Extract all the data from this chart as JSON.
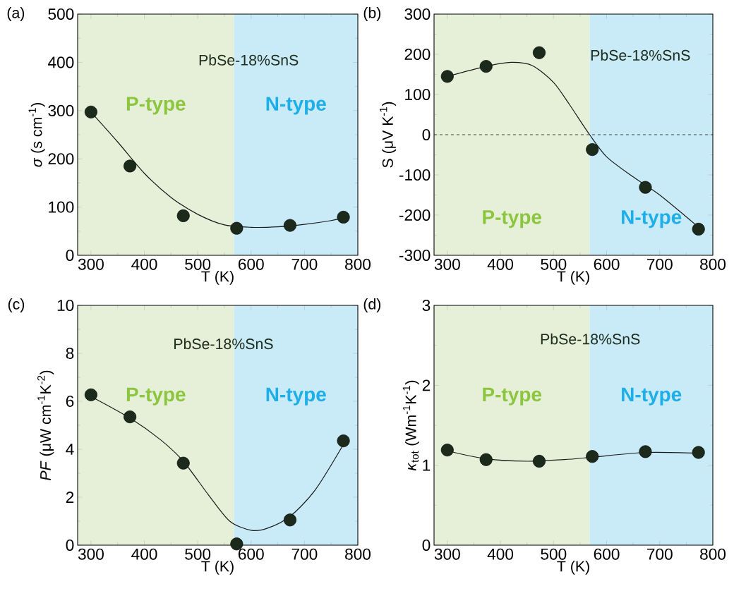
{
  "chart_data": [
    {
      "type": "scatter",
      "xlabel": "T (K)",
      "ylabel": "*σ* (s cm$^{-1}$)",
      "xlim": [
        275,
        800
      ],
      "ylim": [
        0,
        500
      ],
      "xticks": [
        300,
        400,
        500,
        600,
        700,
        800
      ],
      "yticks": [
        0,
        100,
        200,
        300,
        400,
        500
      ],
      "grid": false,
      "marker": "circle",
      "series": [
        {
          "color": "#1c2a1c",
          "x": [
            300,
            373,
            473,
            573,
            673,
            773
          ],
          "values": [
            297,
            185,
            82,
            56,
            62,
            79
          ]
        },
        {
          "type": "line",
          "color": "#1a1a1a",
          "marker": "none",
          "line_style": "solid",
          "x": [
            300,
            350,
            400,
            450,
            500,
            550,
            600,
            650,
            700,
            750,
            773
          ],
          "values": [
            297,
            235,
            170,
            120,
            85,
            63,
            58,
            59,
            64,
            72,
            78
          ]
        }
      ],
      "bands": [
        {
          "axis": "x",
          "from": 275,
          "to": 568,
          "label": "P-type",
          "color": "#e6f0d8"
        },
        {
          "axis": "x",
          "from": 568,
          "to": 800,
          "label": "N-type",
          "color": "#c9ebf8"
        }
      ],
      "annotations": [
        "(a)",
        "PbSe-18%SnS"
      ]
    },
    {
      "type": "scatter",
      "xlabel": "T (K)",
      "ylabel": "S (μV K$^{-1}$)",
      "xlim": [
        275,
        800
      ],
      "ylim": [
        -300,
        300
      ],
      "xticks": [
        300,
        400,
        500,
        600,
        700,
        800
      ],
      "yticks": [
        -300,
        -200,
        -100,
        0,
        100,
        200,
        300
      ],
      "grid": false,
      "marker": "circle",
      "series": [
        {
          "color": "#1c2a1c",
          "x": [
            300,
            373,
            473,
            573,
            673,
            773
          ],
          "values": [
            145,
            170,
            204,
            -37,
            -131,
            -235
          ]
        },
        {
          "type": "line",
          "color": "#1a1a1a",
          "marker": "none",
          "line_style": "solid",
          "x": [
            300,
            373,
            420,
            460,
            500,
            530,
            568,
            600,
            650,
            700,
            773
          ],
          "values": [
            145,
            170,
            180,
            172,
            130,
            75,
            0,
            -55,
            -105,
            -150,
            -230
          ]
        }
      ],
      "bands": [
        {
          "axis": "x",
          "from": 275,
          "to": 568,
          "label": "P-type",
          "color": "#e6f0d8"
        },
        {
          "axis": "x",
          "from": 568,
          "to": 800,
          "label": "N-type",
          "color": "#c9ebf8"
        }
      ],
      "ref_lines": [
        {
          "axis": "y",
          "value": 0,
          "line_style": "dashed",
          "color": "#1a1a1a"
        }
      ],
      "annotations": [
        "(b)",
        "PbSe-18%SnS"
      ]
    },
    {
      "type": "scatter",
      "xlabel": "T (K)",
      "ylabel": "*PF* (μW cm$^{-1}$K$^{-2}$)",
      "xlim": [
        275,
        800
      ],
      "ylim": [
        0,
        10
      ],
      "xticks": [
        300,
        400,
        500,
        600,
        700,
        800
      ],
      "yticks": [
        0,
        2,
        4,
        6,
        8,
        10
      ],
      "grid": false,
      "marker": "circle",
      "series": [
        {
          "color": "#1c2a1c",
          "x": [
            300,
            373,
            473,
            573,
            673,
            773
          ],
          "values": [
            6.27,
            5.35,
            3.42,
            0.05,
            1.05,
            4.35
          ]
        },
        {
          "type": "line",
          "color": "#1a1a1a",
          "marker": "none",
          "line_style": "solid",
          "x": [
            300,
            373,
            430,
            473,
            520,
            560,
            600,
            630,
            673,
            720,
            773
          ],
          "values": [
            6.2,
            5.3,
            4.4,
            3.5,
            2.1,
            1.0,
            0.62,
            0.7,
            1.2,
            2.3,
            4.2
          ]
        }
      ],
      "bands": [
        {
          "axis": "x",
          "from": 275,
          "to": 568,
          "label": "P-type",
          "color": "#e6f0d8"
        },
        {
          "axis": "x",
          "from": 568,
          "to": 800,
          "label": "N-type",
          "color": "#c9ebf8"
        }
      ],
      "annotations": [
        "(c)",
        "PbSe-18%SnS"
      ]
    },
    {
      "type": "scatter",
      "xlabel": "T (K)",
      "ylabel": "*κ*$_{tot}$ (Wm$^{-1}$K$^{-1}$)",
      "xlim": [
        275,
        800
      ],
      "ylim": [
        0,
        3
      ],
      "xticks": [
        300,
        400,
        500,
        600,
        700,
        800
      ],
      "yticks": [
        0,
        1,
        2,
        3
      ],
      "grid": false,
      "marker": "circle",
      "series": [
        {
          "color": "#1c2a1c",
          "x": [
            300,
            373,
            473,
            573,
            673,
            773
          ],
          "values": [
            1.19,
            1.07,
            1.05,
            1.11,
            1.17,
            1.16
          ]
        },
        {
          "type": "line",
          "color": "#1a1a1a",
          "marker": "none",
          "line_style": "solid",
          "x": [
            300,
            373,
            450,
            520,
            573,
            673,
            773
          ],
          "values": [
            1.18,
            1.08,
            1.05,
            1.07,
            1.1,
            1.16,
            1.15
          ]
        }
      ],
      "bands": [
        {
          "axis": "x",
          "from": 275,
          "to": 568,
          "label": "P-type",
          "color": "#e6f0d8"
        },
        {
          "axis": "x",
          "from": 568,
          "to": 800,
          "label": "N-type",
          "color": "#c9ebf8"
        }
      ],
      "annotations": [
        "(d)",
        "PbSe-18%SnS"
      ]
    }
  ]
}
